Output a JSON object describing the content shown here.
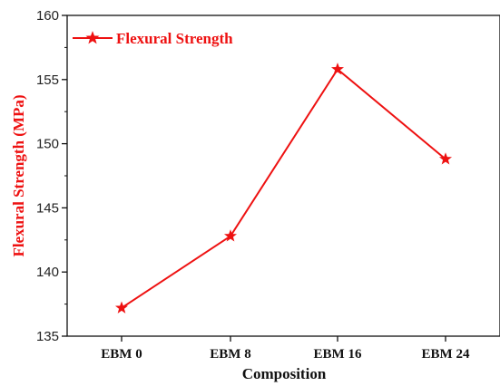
{
  "chart_data": {
    "type": "line",
    "categories": [
      "EBM 0",
      "EBM 8",
      "EBM 16",
      "EBM 24"
    ],
    "series": [
      {
        "name": "Flexural Strength",
        "values": [
          137.2,
          142.8,
          155.8,
          148.8
        ]
      }
    ],
    "xlabel": "Composition",
    "ylabel": "Flexural Strength (MPa)",
    "ylim": [
      135,
      160
    ],
    "yticks": [
      135,
      140,
      145,
      150,
      155,
      160
    ],
    "grid": false,
    "legend": "top-left",
    "marker": "star",
    "colors": {
      "series": "#ee1111",
      "axis": "#111111",
      "ylabel": "#ee1111"
    }
  }
}
